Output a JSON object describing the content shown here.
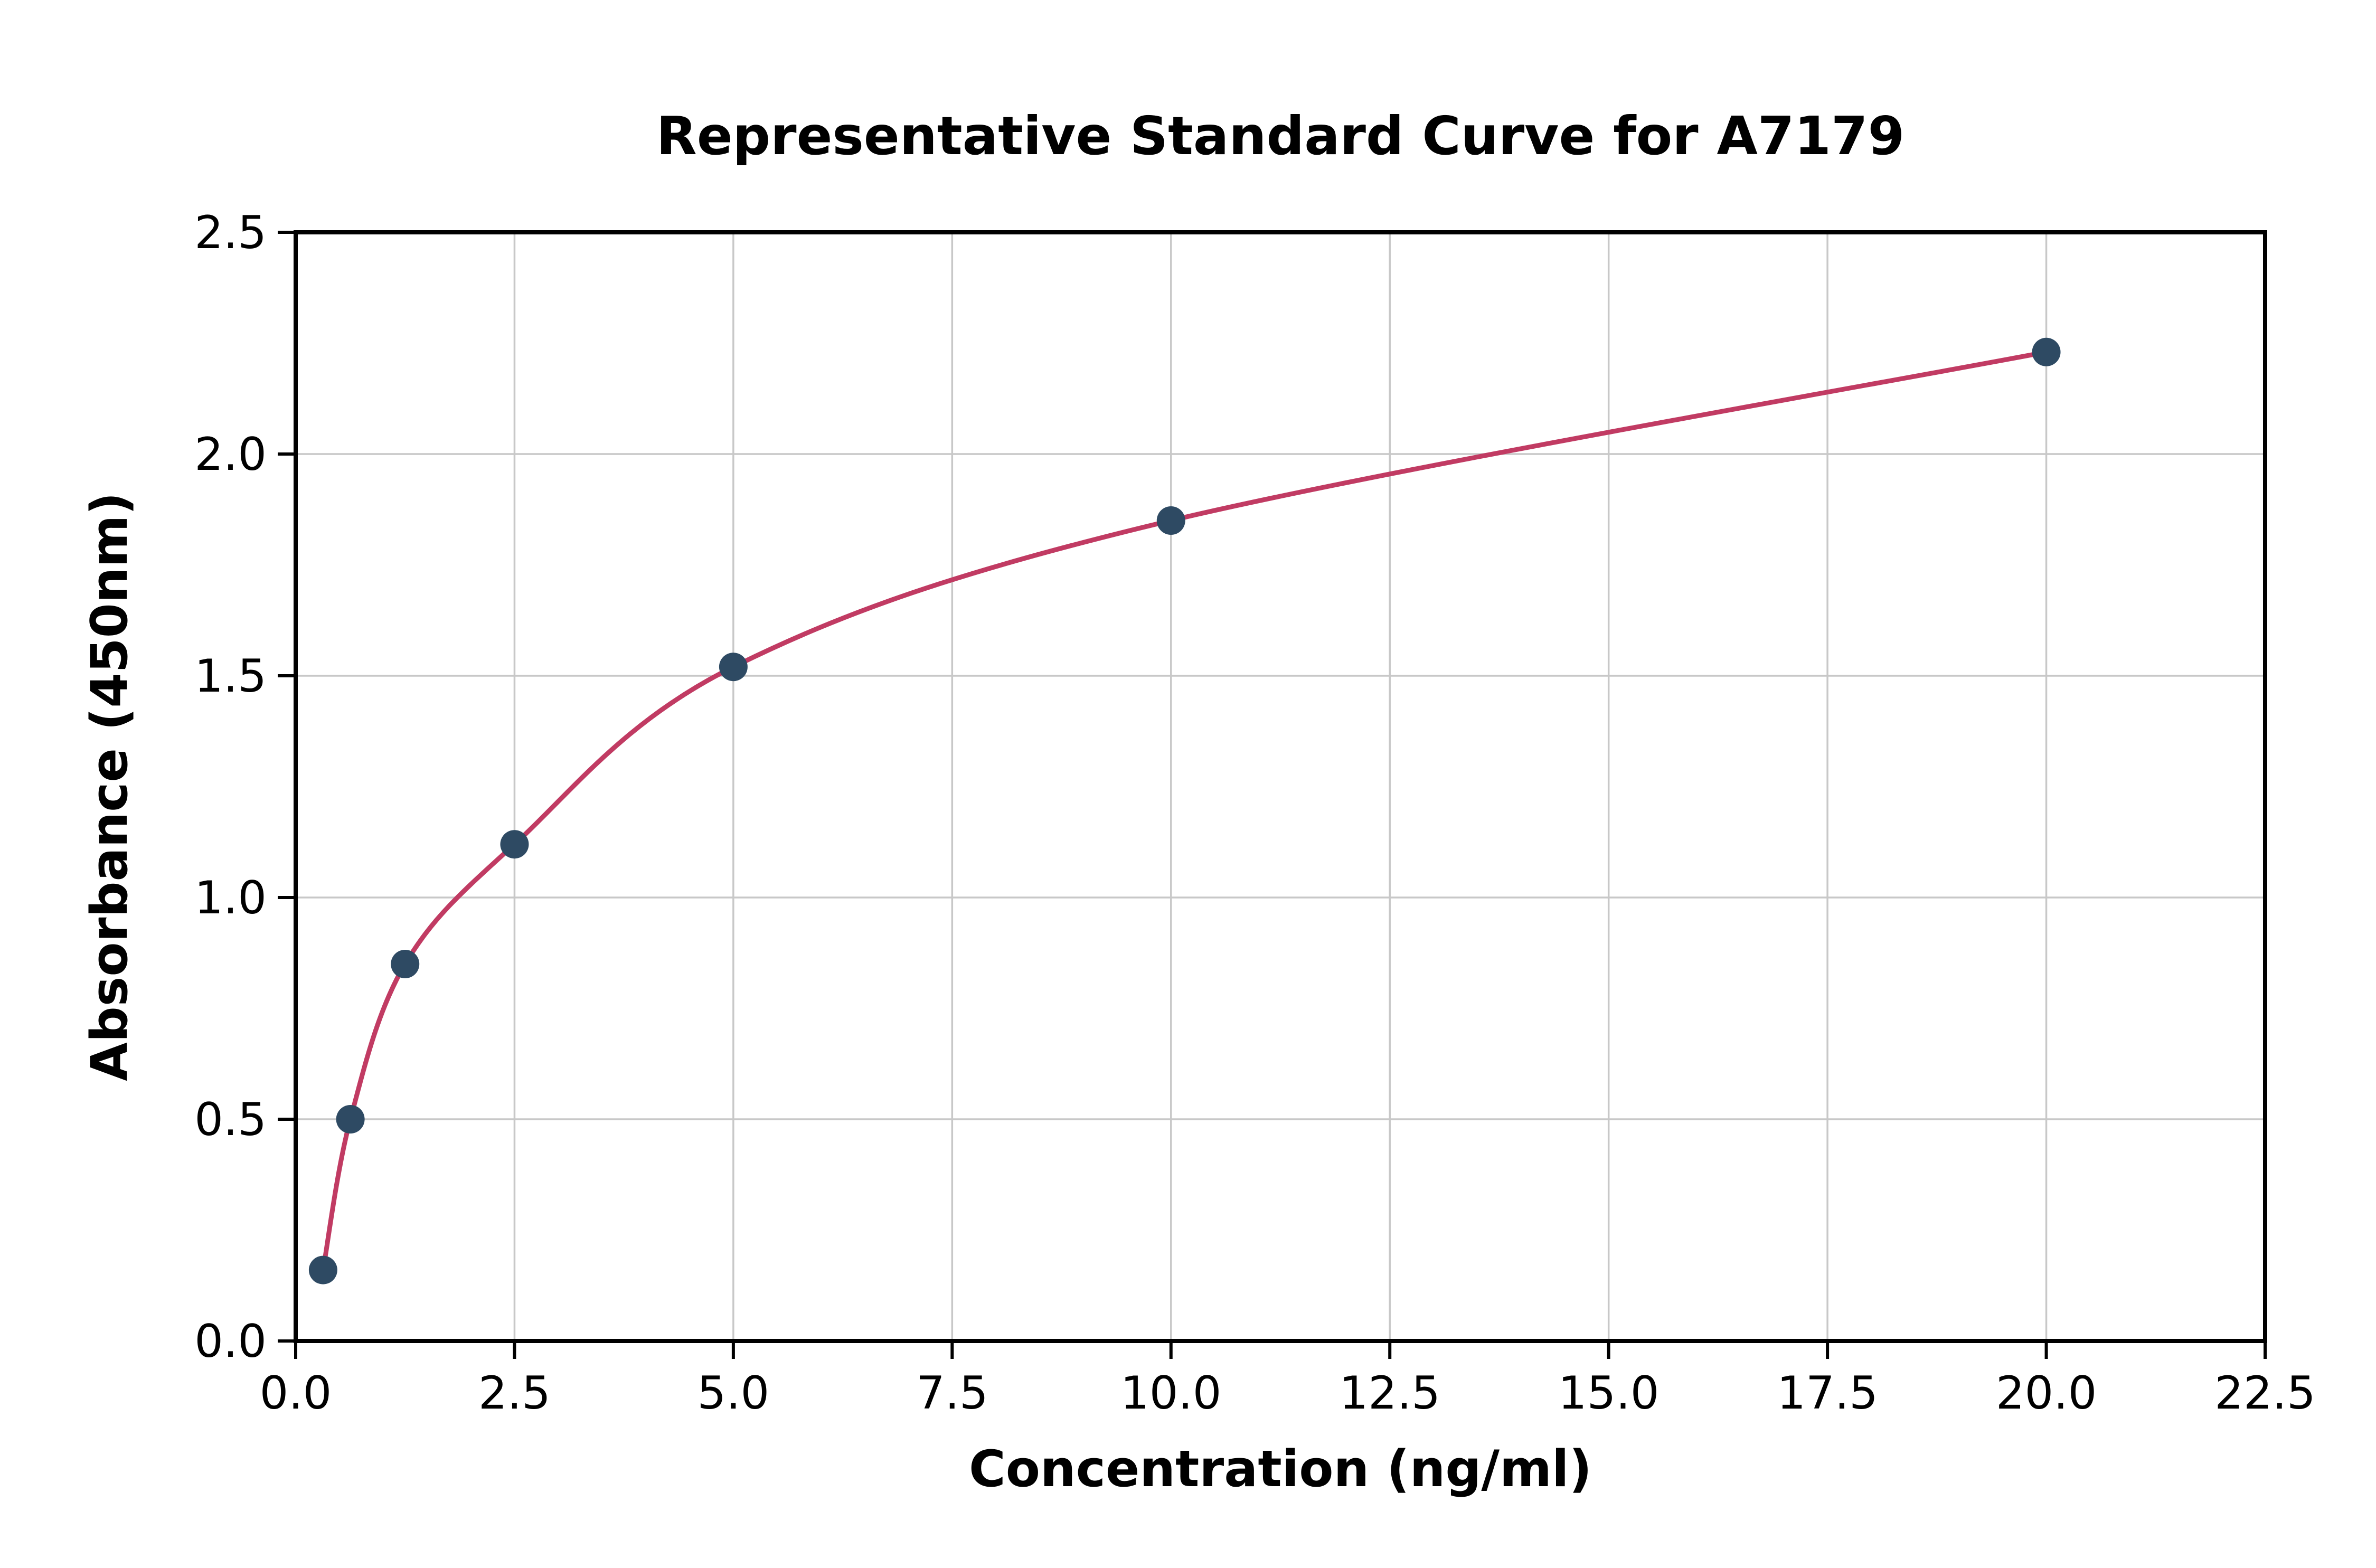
{
  "figure": {
    "background": "#ffffff"
  },
  "chart_data": {
    "type": "scatter",
    "title": "Representative Standard Curve for A7179",
    "xlabel": "Concentration (ng/ml)",
    "ylabel": "Absorbance (450nm)",
    "xlim": [
      0,
      22.5
    ],
    "ylim": [
      0,
      2.5
    ],
    "x_ticks": [
      0.0,
      2.5,
      5.0,
      7.5,
      10.0,
      12.5,
      15.0,
      17.5,
      20.0,
      22.5
    ],
    "x_tick_labels": [
      "0.0",
      "2.5",
      "5.0",
      "7.5",
      "10.0",
      "12.5",
      "15.0",
      "17.5",
      "20.0",
      "22.5"
    ],
    "y_ticks": [
      0.0,
      0.5,
      1.0,
      1.5,
      2.0,
      2.5
    ],
    "y_tick_labels": [
      "0.0",
      "0.5",
      "1.0",
      "1.5",
      "2.0",
      "2.5"
    ],
    "grid": true,
    "legend": "none",
    "series": [
      {
        "name": "standards",
        "x": [
          0.313,
          0.625,
          1.25,
          2.5,
          5,
          10,
          20
        ],
        "y": [
          0.16,
          0.5,
          0.85,
          1.12,
          1.52,
          1.85,
          2.23
        ]
      }
    ],
    "colors": {
      "curve": "#c13b63",
      "points": "#2e4a63",
      "grid": "#c8c8c8",
      "axis": "#000000",
      "background": "#ffffff"
    }
  }
}
